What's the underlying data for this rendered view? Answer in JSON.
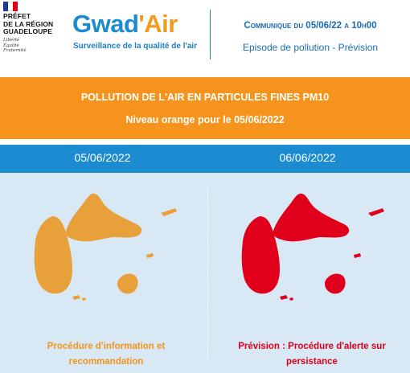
{
  "header": {
    "prefet": {
      "lines": [
        "PRÉFET",
        "DE LA RÉGION",
        "GUADELOUPE"
      ],
      "devise": [
        "Liberté",
        "Égalité",
        "Fraternité"
      ]
    },
    "brand": {
      "name_part1": "Gwad",
      "name_part2": "'Air",
      "tagline": "Surveillance de la qualité de l'air"
    },
    "communique": "Communique du 05/06/22 a 10h00",
    "episode": "Episode de pollution - Prévision"
  },
  "banner": {
    "title": "POLLUTION DE L'AIR EN PARTICULES FINES PM10",
    "subtitle": "Niveau orange pour le 05/06/2022",
    "color": "#f5931d"
  },
  "dates": {
    "left": "05/06/2022",
    "right": "06/06/2022",
    "color": "#1b8bd2"
  },
  "maps": {
    "left": {
      "color": "#e8a13a",
      "level": "orange"
    },
    "right": {
      "color": "#e0001b",
      "level": "red"
    }
  },
  "captions": {
    "left": [
      "Procédure d'information et",
      "recommandation"
    ],
    "right": [
      "Prévision : Procédure d'alerte sur",
      "persistance"
    ]
  }
}
